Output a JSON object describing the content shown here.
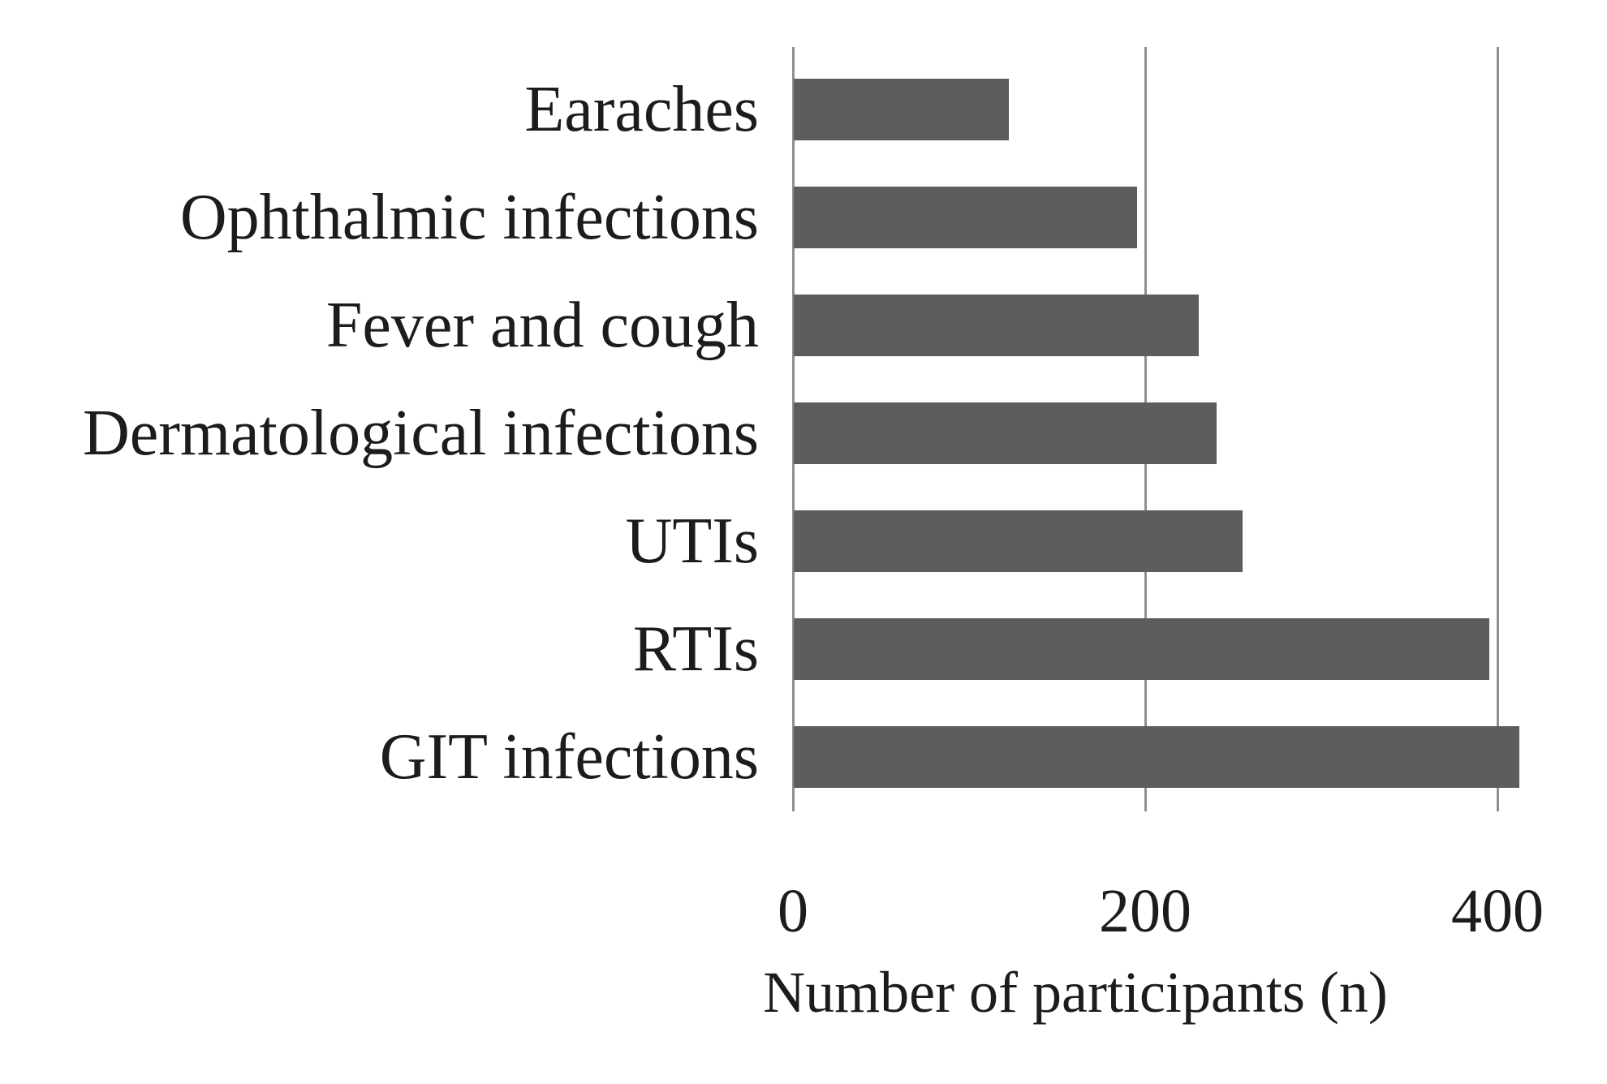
{
  "chart_data": {
    "type": "bar",
    "orientation": "horizontal",
    "title": "",
    "xlabel": "Number of participants (n)",
    "ylabel": "",
    "categories": [
      "Earaches",
      "Ophthalmic infections",
      "Fever and cough",
      "Dermatological infections",
      "UTIs",
      "RTIs",
      "GIT infections"
    ],
    "values": [
      122,
      195,
      230,
      240,
      255,
      395,
      412
    ],
    "xticks": [
      "0",
      "200",
      "400"
    ],
    "xtick_values": [
      0,
      200,
      400
    ],
    "xlim": [
      0,
      426
    ],
    "grid": "vertical-gridlines-on",
    "legend": "none",
    "colors": {
      "bar": "#5d5d5d",
      "gridline": "#8f8f8f",
      "text": "#1c1c1c",
      "background": "#ffffff"
    }
  }
}
